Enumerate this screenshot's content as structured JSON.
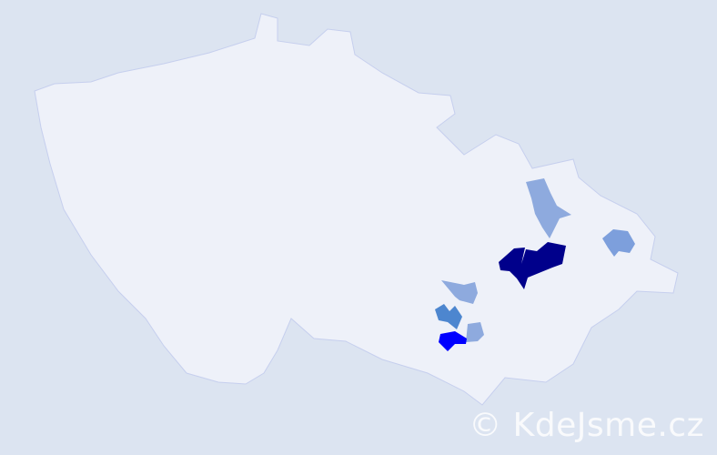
{
  "map": {
    "background_color": "#dce4f1",
    "country_fill": "#eef1f9",
    "border_color": "#c6cfee",
    "highlighted_regions": [
      {
        "id": "region-darkest",
        "color": "#00008b"
      },
      {
        "id": "region-north-light",
        "color": "#8eaade"
      },
      {
        "id": "region-east-light",
        "color": "#7d9fdc"
      },
      {
        "id": "region-south-light-1",
        "color": "#8eaade"
      },
      {
        "id": "region-south-medium",
        "color": "#4d86cf"
      },
      {
        "id": "region-south-light-2",
        "color": "#8eaade"
      },
      {
        "id": "region-bright",
        "color": "#0000ff"
      }
    ]
  },
  "watermark": {
    "text": "© KdeJsme.cz"
  }
}
